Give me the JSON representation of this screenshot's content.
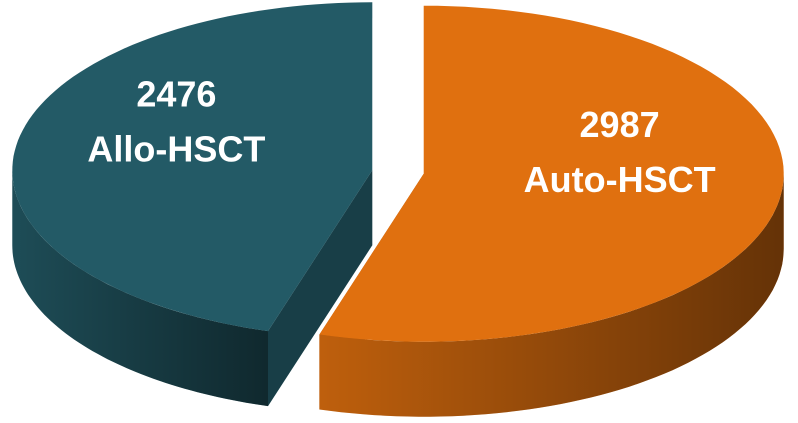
{
  "chart_data": {
    "type": "pie",
    "categories": [
      "Allo-HSCT",
      "Auto-HSCT"
    ],
    "values": [
      2476,
      2987
    ],
    "colors": [
      "#235a66",
      "#e0700f"
    ]
  }
}
